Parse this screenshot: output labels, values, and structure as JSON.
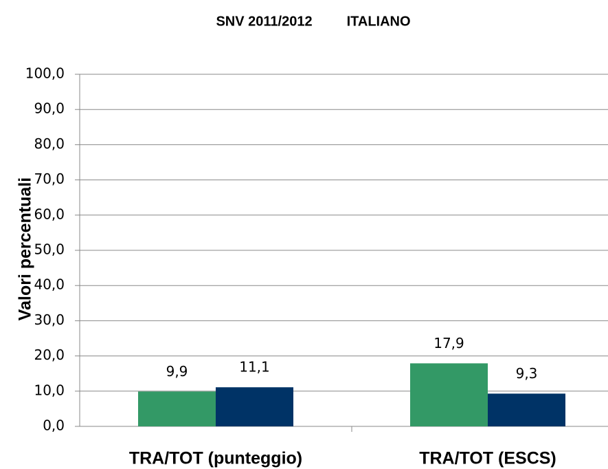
{
  "chart_data": {
    "type": "bar",
    "title": "SNV 2011/2012         ITALIANO",
    "y_label": "Valori percentuali",
    "categories": [
      "TRA/TOT (punteggio)",
      "TRA/TOT (ESCS)"
    ],
    "series": [
      {
        "color": "#339966",
        "values": [
          9.9,
          17.9
        ],
        "value_labels": [
          "9,9",
          "17,9"
        ]
      },
      {
        "color": "#003366",
        "values": [
          11.1,
          9.3
        ],
        "value_labels": [
          "11,1",
          "9,3"
        ]
      }
    ],
    "ylim": [
      0,
      100
    ],
    "yticks": [
      {
        "value": 0,
        "label": "0,0"
      },
      {
        "value": 10,
        "label": "10,0"
      },
      {
        "value": 20,
        "label": "20,0"
      },
      {
        "value": 30,
        "label": "30,0"
      },
      {
        "value": 40,
        "label": "40,0"
      },
      {
        "value": 50,
        "label": "50,0"
      },
      {
        "value": 60,
        "label": "60,0"
      },
      {
        "value": 70,
        "label": "70,0"
      },
      {
        "value": 80,
        "label": "80,0"
      },
      {
        "value": 90,
        "label": "90,0"
      },
      {
        "value": 100,
        "label": "100,0"
      }
    ],
    "grid": true
  }
}
